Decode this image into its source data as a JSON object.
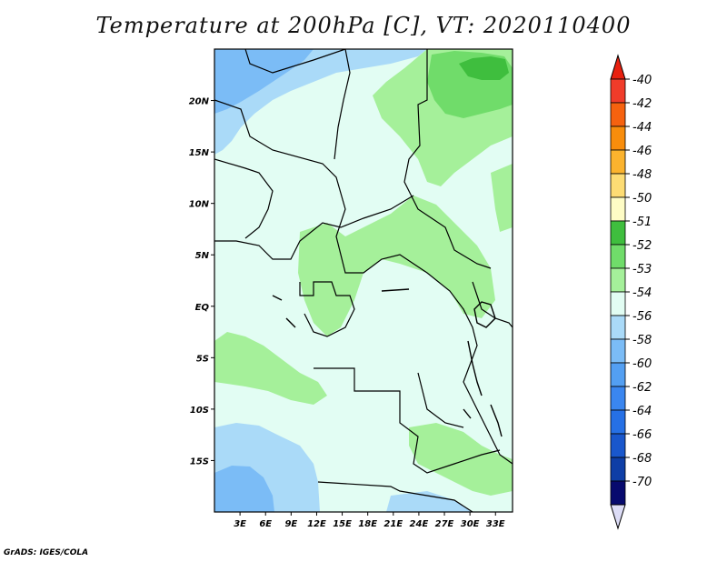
{
  "title": "Temperature at 200hPa [C], VT: 2020110400",
  "credit": "GrADS: IGES/COLA",
  "map": {
    "lon_range": [
      0,
      35
    ],
    "lat_range": [
      -20,
      25
    ],
    "x_ticks": [
      "3E",
      "6E",
      "9E",
      "12E",
      "15E",
      "18E",
      "21E",
      "24E",
      "27E",
      "30E",
      "33E"
    ],
    "y_ticks": [
      "20N",
      "15N",
      "10N",
      "5N",
      "EQ",
      "5S",
      "10S",
      "15S"
    ]
  },
  "colorbar": {
    "levels": [
      "-40",
      "-42",
      "-44",
      "-46",
      "-48",
      "-50",
      "-51",
      "-52",
      "-53",
      "-54",
      "-56",
      "-58",
      "-60",
      "-62",
      "-64",
      "-66",
      "-68",
      "-70"
    ],
    "colors": [
      "#f03c2a",
      "#f6620f",
      "#f88d0c",
      "#fbb32e",
      "#fddc74",
      "#fefcc5",
      "#3fbe3e",
      "#70dc6a",
      "#a5f09a",
      "#e2fdf3",
      "#aadaf8",
      "#7bbcf6",
      "#539ff2",
      "#3a86ef",
      "#2670e5",
      "#1957cc",
      "#0e3ea6",
      "#070a6e"
    ],
    "top_arrow_color": "#e8200f",
    "bottom_arrow_color": "#dcdcf6"
  }
}
